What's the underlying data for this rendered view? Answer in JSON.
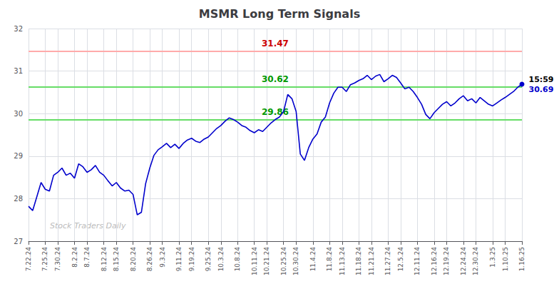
{
  "chart_data": {
    "type": "line",
    "title": "MSMR Long Term Signals",
    "color": "#0000cc",
    "grid": true,
    "ylim": [
      27,
      32
    ],
    "yticks": [
      27,
      28,
      29,
      30,
      31,
      32
    ],
    "categories": [
      "7.22.24",
      null,
      null,
      null,
      "7.25.24",
      null,
      null,
      "7.30.24",
      null,
      null,
      null,
      "8.2.24",
      null,
      null,
      "8.7.24",
      null,
      null,
      null,
      "8.12.24",
      null,
      null,
      "8.15.24",
      null,
      null,
      null,
      "8.20.24",
      null,
      null,
      null,
      "8.26.24",
      null,
      null,
      "9.3.24",
      null,
      null,
      null,
      "9.11.24",
      null,
      null,
      "9.19.24",
      null,
      null,
      null,
      "9.25.24",
      null,
      null,
      "10.3.24",
      null,
      null,
      null,
      "10.8.24",
      null,
      null,
      null,
      "10.11.24",
      null,
      null,
      "10.21.24",
      null,
      null,
      null,
      "10.25.24",
      null,
      null,
      "10.30.24",
      null,
      null,
      null,
      "11.4.24",
      null,
      null,
      null,
      "11.8.24",
      null,
      null,
      "11.13.24",
      null,
      null,
      null,
      "11.18.24",
      null,
      null,
      "11.21.24",
      null,
      null,
      null,
      "11.27.24",
      null,
      null,
      "12.5.24",
      null,
      null,
      null,
      "12.11.24",
      null,
      null,
      null,
      "12.16.24",
      null,
      null,
      "12.19.24",
      null,
      null,
      null,
      "12.24.24",
      null,
      null,
      "12.30.24",
      null,
      null,
      null,
      "1.3.25",
      null,
      null,
      "1.10.25",
      null,
      null,
      null,
      "1.16.25"
    ],
    "values": [
      27.82,
      27.72,
      28.05,
      28.38,
      28.22,
      28.18,
      28.55,
      28.62,
      28.72,
      28.55,
      28.6,
      28.48,
      28.82,
      28.75,
      28.62,
      28.68,
      28.78,
      28.62,
      28.55,
      28.42,
      28.3,
      28.38,
      28.25,
      28.18,
      28.2,
      28.1,
      27.62,
      27.68,
      28.35,
      28.72,
      29.02,
      29.15,
      29.22,
      29.3,
      29.2,
      29.28,
      29.18,
      29.3,
      29.38,
      29.42,
      29.35,
      29.32,
      29.4,
      29.45,
      29.55,
      29.65,
      29.72,
      29.82,
      29.9,
      29.86,
      29.8,
      29.72,
      29.68,
      29.6,
      29.55,
      29.62,
      29.58,
      29.68,
      29.78,
      29.86,
      29.92,
      30.05,
      30.45,
      30.35,
      30.05,
      29.05,
      28.9,
      29.2,
      29.4,
      29.52,
      29.8,
      29.92,
      30.25,
      30.48,
      30.62,
      30.62,
      30.52,
      30.68,
      30.72,
      30.78,
      30.82,
      30.9,
      30.8,
      30.88,
      30.92,
      30.75,
      30.82,
      30.9,
      30.85,
      30.72,
      30.58,
      30.62,
      30.52,
      30.38,
      30.22,
      29.98,
      29.88,
      30.02,
      30.12,
      30.22,
      30.28,
      30.18,
      30.25,
      30.35,
      30.42,
      30.3,
      30.35,
      30.25,
      30.38,
      30.3,
      30.22,
      30.18,
      30.25,
      30.32,
      30.38,
      30.45,
      30.52,
      30.62,
      30.69
    ],
    "reference_lines": [
      {
        "value": 31.47,
        "color": "#ffaaaa",
        "label": "31.47",
        "label_color": "#cc0000"
      },
      {
        "value": 30.62,
        "color": "#66dd66",
        "label": "30.62",
        "label_color": "#009900"
      },
      {
        "value": 29.86,
        "color": "#66dd66",
        "label": "29.86",
        "label_color": "#009900"
      }
    ],
    "end_labels": [
      {
        "text": "15:59",
        "color": "#000000"
      },
      {
        "text": "30.69",
        "color": "#0000cc"
      }
    ],
    "watermark": {
      "text": "Stock Traders Daily",
      "color": "#bbbbbb"
    }
  }
}
